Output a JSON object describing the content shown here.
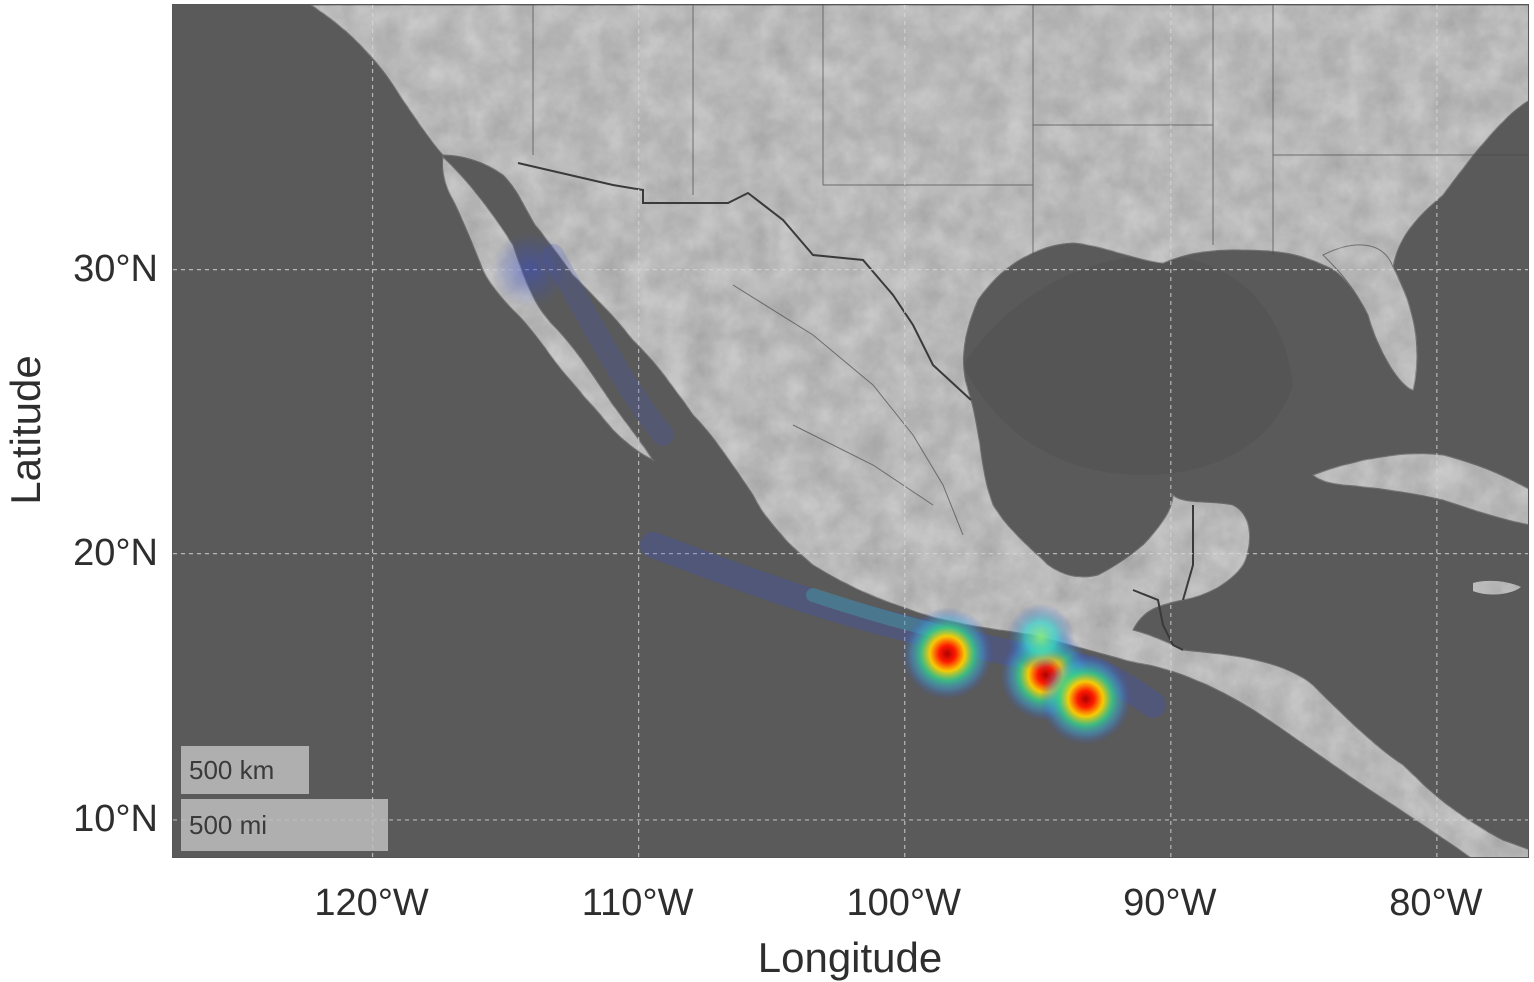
{
  "map": {
    "y_axis_title": "Latitude",
    "x_axis_title": "Longitude",
    "y_ticks": [
      {
        "value": 30,
        "label": "30°N"
      },
      {
        "value": 20,
        "label": "20°N"
      },
      {
        "value": 10,
        "label": "10°N"
      }
    ],
    "x_ticks": [
      {
        "value": -120,
        "label": "120°W"
      },
      {
        "value": -110,
        "label": "110°W"
      },
      {
        "value": -100,
        "label": "100°W"
      },
      {
        "value": -90,
        "label": "90°W"
      },
      {
        "value": -80,
        "label": "80°W"
      }
    ],
    "extent": {
      "lon_min": -127.5,
      "lon_max": -76.5,
      "lat_min": 8.5,
      "lat_max": 38.5
    },
    "scale_bar": {
      "km_label": "500 km",
      "mi_label": "500 mi"
    },
    "colors": {
      "ocean": "#5a5a5a",
      "land": "#b9b9b9",
      "grid": "#d8d8d8",
      "borders": "#3a3a3a",
      "heat_low": "#3a4fc8",
      "heat_mid": "#3ad6d0",
      "heat_high": "#ff1a00"
    },
    "hotspots": [
      {
        "lon": -98.4,
        "lat": 16.3,
        "intensity": 1.0
      },
      {
        "lon": -94.7,
        "lat": 15.5,
        "intensity": 1.0
      },
      {
        "lon": -93.2,
        "lat": 14.6,
        "intensity": 0.95
      },
      {
        "lon": -94.9,
        "lat": 16.9,
        "intensity": 0.45
      },
      {
        "lon": -114.1,
        "lat": 30.0,
        "intensity": 0.25
      }
    ]
  }
}
